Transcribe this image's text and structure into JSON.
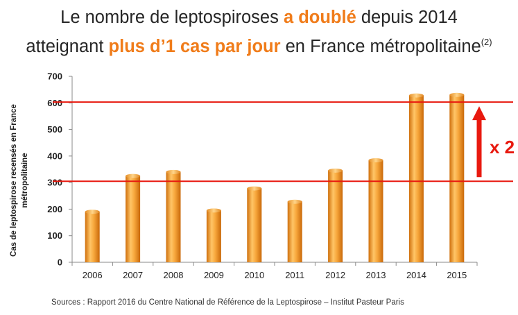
{
  "title": {
    "part1": "Le nombre de leptospiroses ",
    "highlight1": "a doublé",
    "part2": " depuis 2014",
    "part3": "atteignant ",
    "highlight2": "plus d’1 cas par jour",
    "part4": " en France métropolitaine",
    "superscript": "(2)"
  },
  "chart_data": {
    "type": "bar",
    "categories": [
      "2006",
      "2007",
      "2008",
      "2009",
      "2010",
      "2011",
      "2012",
      "2013",
      "2014",
      "2015"
    ],
    "values": [
      190,
      325,
      340,
      195,
      278,
      228,
      345,
      384,
      628,
      630
    ],
    "ylabel": "Cas de leptospirose recensés en France métropolitaine",
    "xlabel": "",
    "ylim": [
      0,
      700
    ],
    "yticks": [
      0,
      100,
      200,
      300,
      400,
      500,
      600,
      700
    ],
    "grid": false,
    "reference_lines": [
      305,
      603
    ],
    "annotation": "x 2",
    "colors": {
      "bar": "#f5a23a",
      "reference_line": "#e8190f",
      "accent": "#f07c1a"
    }
  },
  "source": "Sources : Rapport 2016 du Centre National de Référence de la Leptospirose – Institut Pasteur Paris"
}
